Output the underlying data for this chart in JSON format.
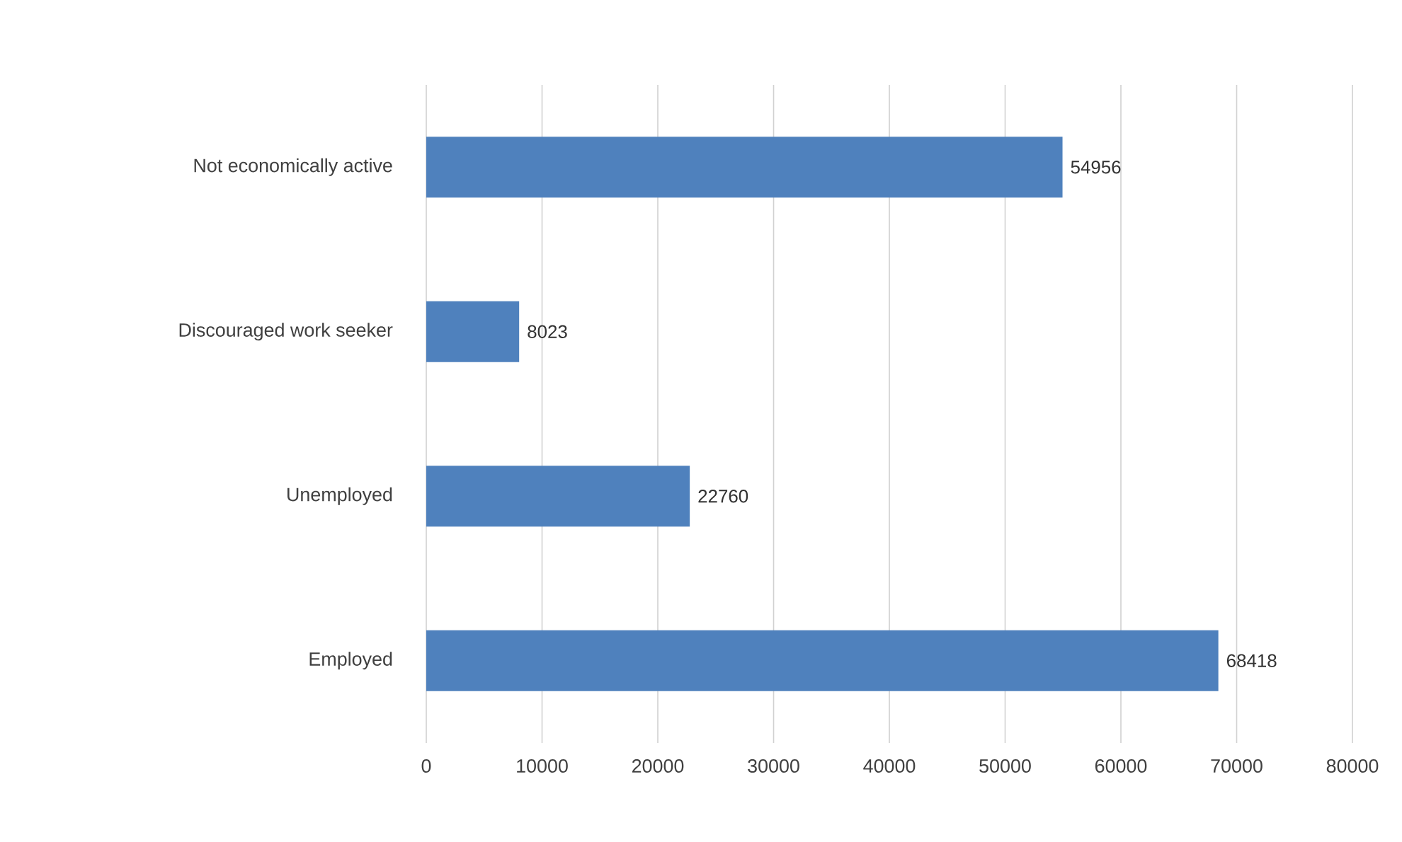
{
  "chart_data": {
    "type": "bar",
    "orientation": "horizontal",
    "categories": [
      "Not economically active",
      "Discouraged work seeker",
      "Unemployed",
      "Employed"
    ],
    "values": [
      54956,
      8023,
      22760,
      68418
    ],
    "color": "#4f81bd",
    "xlim": [
      0,
      80000
    ],
    "xticks": [
      0,
      10000,
      20000,
      30000,
      40000,
      50000,
      60000,
      70000,
      80000
    ],
    "grid": "x",
    "data_labels": true
  }
}
